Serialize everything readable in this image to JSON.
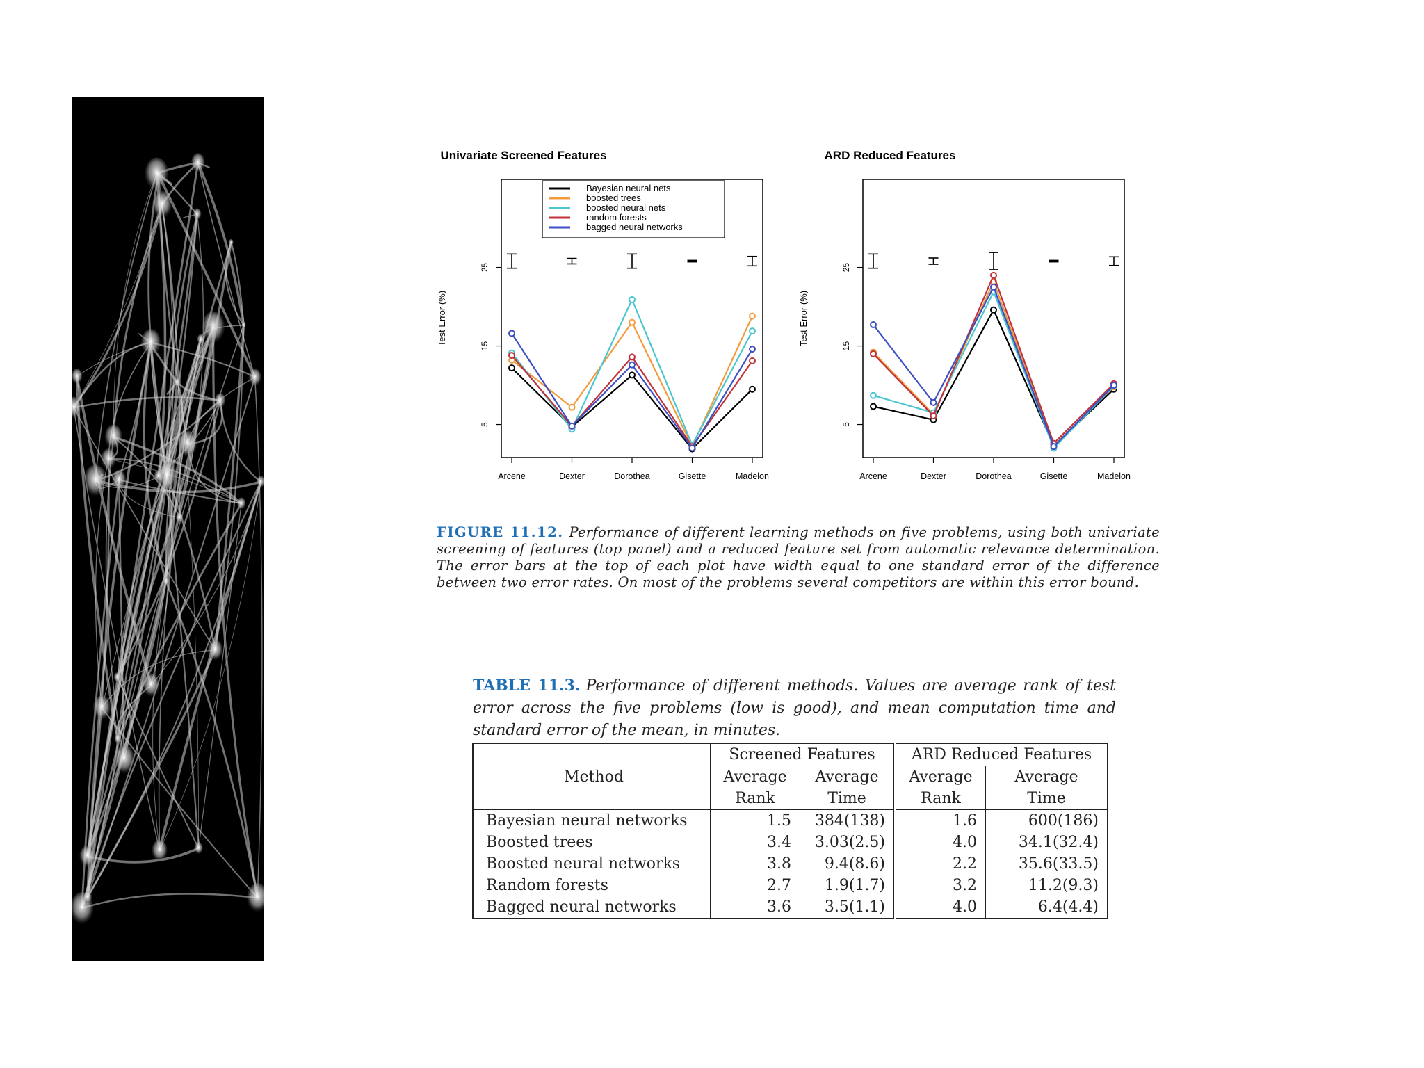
{
  "colors": {
    "bayesian": "#000000",
    "boosted_trees": "#f39b3c",
    "boosted_nn": "#4cc6cf",
    "random_forests": "#c0333a",
    "bagged_nn": "#3c4fc4",
    "caption_label": "#1f6fb5"
  },
  "figure": {
    "label": "FIGURE 11.12.",
    "caption": "Performance of different learning methods on five problems, using both univariate screening of features (top panel) and a reduced feature set from automatic relevance determination. The error bars at the top of each plot have width equal to one standard error of the difference between two error rates. On most of the problems several competitors are within this error bound."
  },
  "chart_data": [
    {
      "type": "line",
      "title": "Univariate Screened Features",
      "ylabel": "Test Error (%)",
      "xlabel": "",
      "categories": [
        "Arcene",
        "Dexter",
        "Dorothea",
        "Gisette",
        "Madelon"
      ],
      "yticks": [
        5,
        15,
        25
      ],
      "ylim": [
        0.8,
        36.2
      ],
      "legend_position": "top-center",
      "series": [
        {
          "name": "Bayesian neural nets",
          "color": "#000000",
          "values": [
            12.2,
            4.7,
            11.3,
            1.9,
            9.5
          ]
        },
        {
          "name": "boosted trees",
          "color": "#f39b3c",
          "values": [
            13.2,
            7.2,
            18.0,
            2.2,
            18.8
          ]
        },
        {
          "name": "boosted neural nets",
          "color": "#4cc6cf",
          "values": [
            14.1,
            4.4,
            20.9,
            2.4,
            16.9
          ]
        },
        {
          "name": "random forests",
          "color": "#c0333a",
          "values": [
            13.8,
            4.8,
            13.6,
            2.2,
            13.1
          ]
        },
        {
          "name": "bagged neural networks",
          "color": "#3c4fc4",
          "values": [
            16.6,
            4.8,
            12.6,
            2.0,
            14.6
          ]
        }
      ],
      "error_bars": [
        {
          "center": 25.8,
          "half_width": 0.9
        },
        {
          "center": 25.8,
          "half_width": 0.35
        },
        {
          "center": 25.8,
          "half_width": 0.9
        },
        {
          "center": 25.8,
          "half_width": 0.1
        },
        {
          "center": 25.8,
          "half_width": 0.6
        }
      ]
    },
    {
      "type": "line",
      "title": "ARD Reduced Features",
      "ylabel": "Test Error (%)",
      "xlabel": "",
      "categories": [
        "Arcene",
        "Dexter",
        "Dorothea",
        "Gisette",
        "Madelon"
      ],
      "yticks": [
        5,
        15,
        25
      ],
      "ylim": [
        0.8,
        36.2
      ],
      "series": [
        {
          "name": "Bayesian neural nets",
          "color": "#000000",
          "values": [
            7.3,
            5.6,
            19.6,
            2.3,
            9.5
          ]
        },
        {
          "name": "boosted trees",
          "color": "#f39b3c",
          "values": [
            14.2,
            6.3,
            23.2,
            2.3,
            9.8
          ]
        },
        {
          "name": "boosted neural nets",
          "color": "#4cc6cf",
          "values": [
            8.7,
            6.5,
            21.9,
            2.0,
            9.9
          ]
        },
        {
          "name": "random forests",
          "color": "#c0333a",
          "values": [
            14.0,
            6.1,
            24.0,
            2.6,
            10.2
          ]
        },
        {
          "name": "bagged neural networks",
          "color": "#3c4fc4",
          "values": [
            17.7,
            7.8,
            22.5,
            2.2,
            10.0
          ]
        }
      ],
      "error_bars": [
        {
          "center": 25.8,
          "half_width": 0.9
        },
        {
          "center": 25.8,
          "half_width": 0.4
        },
        {
          "center": 25.8,
          "half_width": 1.1
        },
        {
          "center": 25.8,
          "half_width": 0.1
        },
        {
          "center": 25.8,
          "half_width": 0.55
        }
      ]
    }
  ],
  "table": {
    "label": "TABLE 11.3.",
    "caption": "Performance of different methods. Values are average rank of test error across the five problems (low is good), and mean computation time and standard error of the mean, in minutes.",
    "group_headers": [
      "Screened Features",
      "ARD Reduced Features"
    ],
    "method_header": "Method",
    "sub_headers_line1": [
      "Average",
      "Average",
      "Average",
      "Average"
    ],
    "sub_headers_line2": [
      "Rank",
      "Time",
      "Rank",
      "Time"
    ],
    "rows": [
      {
        "method": "Bayesian neural networks",
        "values": [
          "1.5",
          "384(138)",
          "1.6",
          "600(186)"
        ]
      },
      {
        "method": "Boosted trees",
        "values": [
          "3.4",
          "3.03(2.5)",
          "4.0",
          "34.1(32.4)"
        ]
      },
      {
        "method": "Boosted neural networks",
        "values": [
          "3.8",
          "9.4(8.6)",
          "2.2",
          "35.6(33.5)"
        ]
      },
      {
        "method": "Random forests",
        "values": [
          "2.7",
          "1.9(1.7)",
          "3.2",
          "11.2(9.3)"
        ]
      },
      {
        "method": "Bagged neural networks",
        "values": [
          "3.6",
          "3.5(1.1)",
          "4.0",
          "6.4(4.4)"
        ]
      }
    ]
  }
}
